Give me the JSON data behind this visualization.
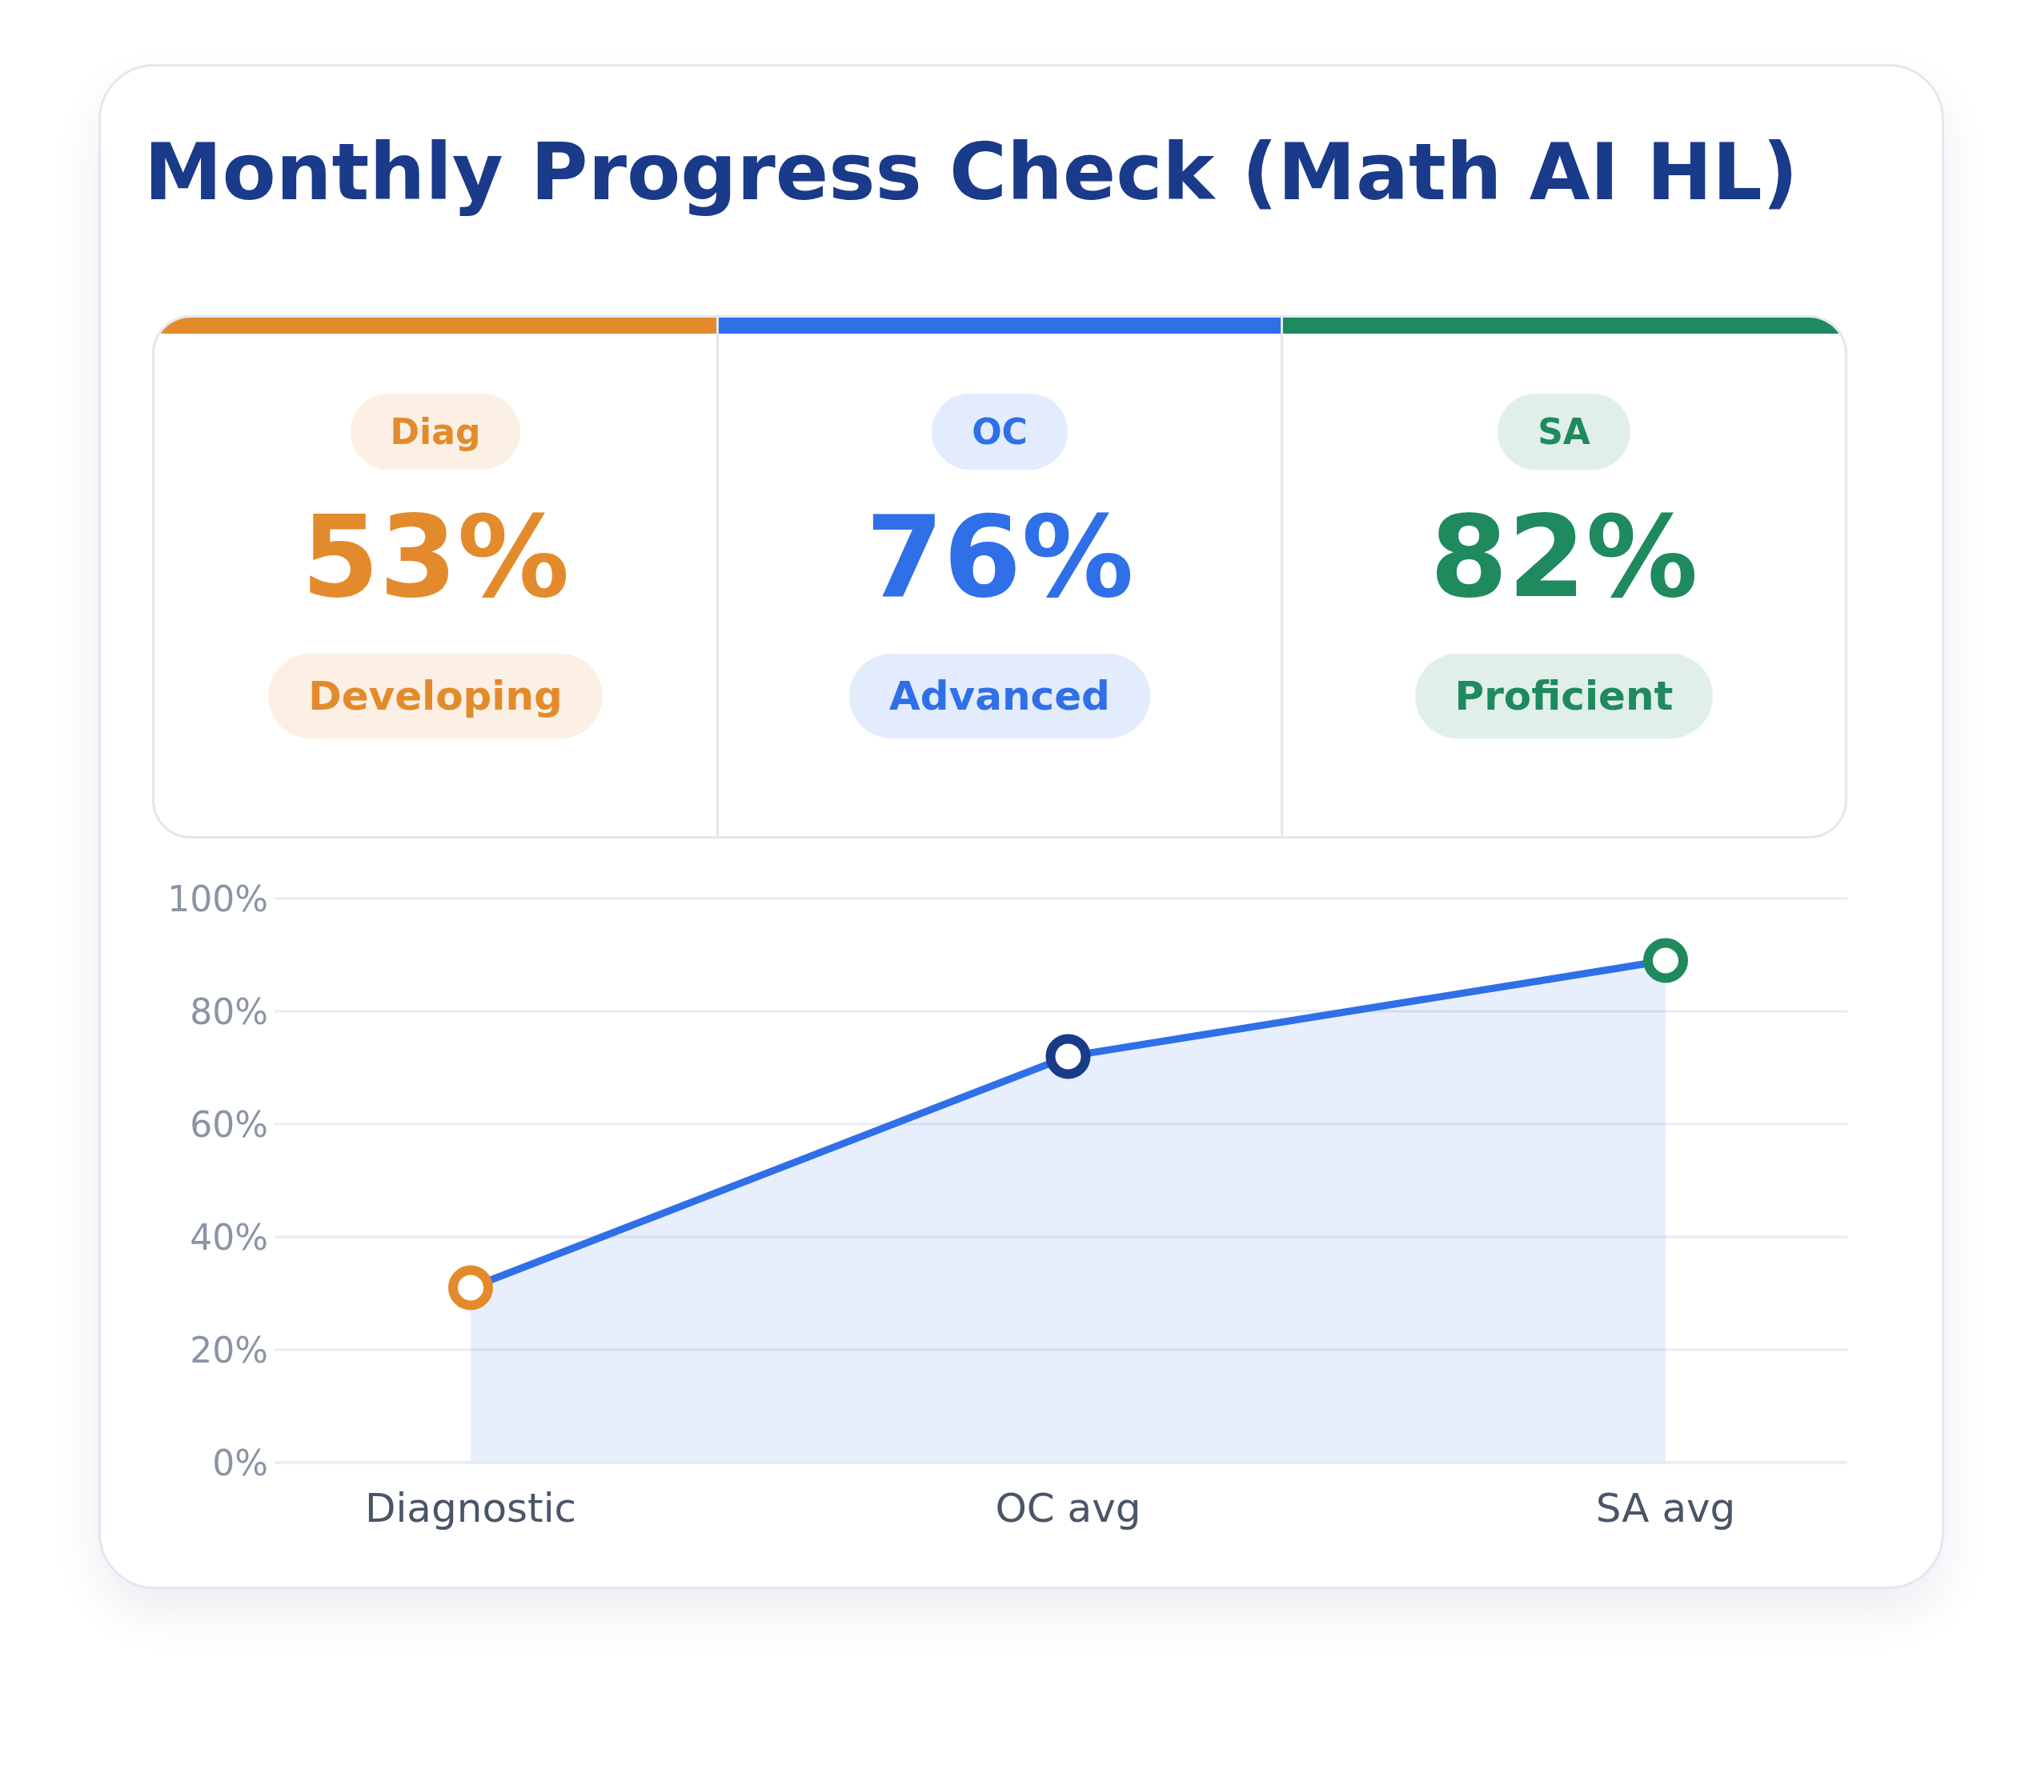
{
  "chart_data": [
    {
      "type": "other",
      "title": "Monthly Progress Check (Math AI HL)",
      "categories": [
        "Diag",
        "OC",
        "SA"
      ],
      "value_labels": [
        "53%",
        "76%",
        "82%"
      ],
      "colors": [
        "#e38b2c",
        "#2f6fe8",
        "#1e8a5e"
      ],
      "annotations": [
        "Developing",
        "Advanced",
        "Proficient"
      ]
    },
    {
      "type": "area",
      "categories": [
        "Diagnostic",
        "OC avg",
        "SA avg"
      ],
      "series": [
        {
          "color": "#2f6fe8",
          "values": [
            31,
            72,
            89
          ]
        }
      ],
      "colors": [
        "#e38b2c",
        "#1a3a8a",
        "#1e8a5e"
      ],
      "ylim": [
        0,
        100
      ],
      "yticks": [
        {
          "value": 0,
          "label": "0%"
        },
        {
          "value": 20,
          "label": "20%"
        },
        {
          "value": 40,
          "label": "40%"
        },
        {
          "value": 60,
          "label": "60%"
        },
        {
          "value": 80,
          "label": "80%"
        },
        {
          "value": 100,
          "label": "100%"
        }
      ],
      "grid": "y",
      "marker": "circle"
    }
  ]
}
